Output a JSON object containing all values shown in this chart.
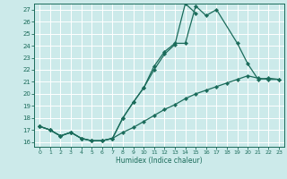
{
  "xlabel": "Humidex (Indice chaleur)",
  "bg_color": "#cceaea",
  "grid_color": "#ffffff",
  "line_color": "#1a6b5a",
  "ylim": [
    15.6,
    27.5
  ],
  "xlim": [
    -0.5,
    23.5
  ],
  "yticks": [
    16,
    17,
    18,
    19,
    20,
    21,
    22,
    23,
    24,
    25,
    26,
    27
  ],
  "xticks": [
    0,
    1,
    2,
    3,
    4,
    5,
    6,
    7,
    8,
    9,
    10,
    11,
    12,
    13,
    14,
    15,
    16,
    17,
    18,
    19,
    20,
    21,
    22,
    23
  ],
  "line1_x": [
    0,
    1,
    2,
    3,
    4,
    5,
    6,
    7,
    8,
    9,
    10,
    11,
    12,
    13,
    14,
    15,
    16,
    17,
    19,
    20,
    21,
    22,
    23
  ],
  "line1_y": [
    17.3,
    17.0,
    16.5,
    16.8,
    16.3,
    16.1,
    16.1,
    16.3,
    18.0,
    19.3,
    20.5,
    22.3,
    23.5,
    24.2,
    24.2,
    27.3,
    26.5,
    27.0,
    24.2,
    22.5,
    21.2,
    21.3,
    21.2
  ],
  "line2_x": [
    0,
    1,
    2,
    3,
    4,
    5,
    6,
    7,
    8,
    9,
    10,
    11,
    12,
    13,
    14,
    15
  ],
  "line2_y": [
    17.3,
    17.0,
    16.5,
    16.8,
    16.3,
    16.1,
    16.1,
    16.3,
    18.0,
    19.3,
    20.5,
    22.0,
    23.3,
    24.1,
    27.5,
    26.7
  ],
  "line3_x": [
    0,
    1,
    2,
    3,
    4,
    5,
    6,
    7,
    8,
    9,
    10,
    11,
    12,
    13,
    14,
    15,
    16,
    17,
    18,
    19,
    20,
    21,
    22,
    23
  ],
  "line3_y": [
    17.3,
    17.0,
    16.5,
    16.8,
    16.3,
    16.1,
    16.1,
    16.3,
    16.8,
    17.2,
    17.7,
    18.2,
    18.7,
    19.1,
    19.6,
    20.0,
    20.3,
    20.6,
    20.9,
    21.2,
    21.5,
    21.3,
    21.2,
    21.2
  ]
}
